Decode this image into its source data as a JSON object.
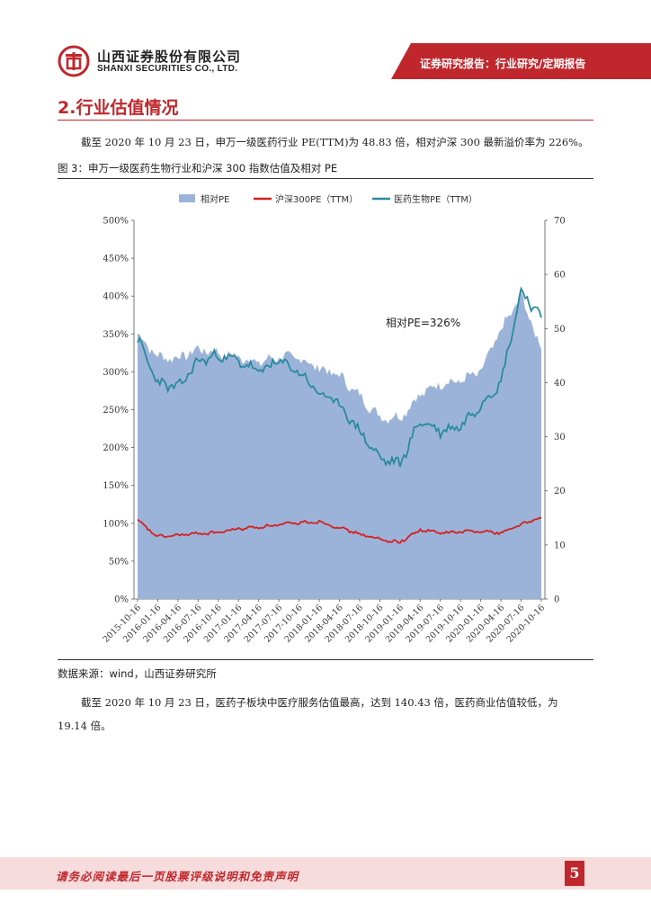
{
  "header": {
    "company_cn": "山西证券股份有限公司",
    "company_en": "SHANXI SECURITIES CO., LTD.",
    "report_type": "证券研究报告：行业研究/定期报告",
    "brand_color": "#c0272d"
  },
  "section": {
    "title": "2.行业估值情况"
  },
  "paragraph1": "截至 2020 年 10 月 23 日，申万一级医药行业 PE(TTM)为 48.83 倍，相对沪深 300 最新溢价率为 226%。",
  "figure": {
    "title": "图 3：申万一级医药生物行业和沪深 300 指数估值及相对 PE",
    "source": "数据来源：wind，山西证券研究所"
  },
  "chart_data": {
    "type": "area",
    "legend": [
      "相对PE",
      "沪深300PE（TTM）",
      "医药生物PE（TTM）"
    ],
    "legend_position": "top",
    "annotation": "相对PE=326%",
    "x": [
      "2015-10-16",
      "2016-01-16",
      "2016-04-16",
      "2016-07-16",
      "2016-10-16",
      "2017-01-16",
      "2017-04-16",
      "2017-07-16",
      "2017-10-16",
      "2018-01-16",
      "2018-04-16",
      "2018-07-16",
      "2018-10-16",
      "2019-01-16",
      "2019-04-16",
      "2019-07-16",
      "2019-10-16",
      "2020-01-16",
      "2020-04-16",
      "2020-07-16",
      "2020-10-16"
    ],
    "left_axis": {
      "ticks": [
        "0%",
        "50%",
        "100%",
        "150%",
        "200%",
        "250%",
        "300%",
        "350%",
        "400%",
        "450%",
        "500%"
      ],
      "min": 0,
      "max": 500
    },
    "right_axis": {
      "ticks": [
        "0",
        "10",
        "20",
        "30",
        "40",
        "50",
        "60",
        "70"
      ],
      "min": 0,
      "max": 70
    },
    "series": [
      {
        "name": "相对PE",
        "axis": "left",
        "color": "#9bb3d8",
        "values": [
          350,
          320,
          318,
          330,
          325,
          320,
          312,
          320,
          318,
          305,
          295,
          268,
          240,
          240,
          270,
          285,
          288,
          300,
          355,
          400,
          330
        ]
      },
      {
        "name": "沪深300PE（TTM）",
        "axis": "right",
        "color": "#d42020",
        "values": [
          14.5,
          11.5,
          11.8,
          12.1,
          12.3,
          13.0,
          13.3,
          13.7,
          14.1,
          14.3,
          13.2,
          12.0,
          11.0,
          10.5,
          12.8,
          12.2,
          12.4,
          12.6,
          12.2,
          13.8,
          15.0
        ]
      },
      {
        "name": "医药生物PE（TTM）",
        "axis": "right",
        "color": "#2a8a9f",
        "values": [
          48,
          40,
          39,
          44,
          45,
          44,
          42,
          44,
          42,
          38,
          36,
          31,
          26,
          25,
          33,
          31,
          32,
          36,
          40,
          57,
          52
        ]
      }
    ]
  },
  "paragraph2_line1": "截至 2020 年 10 月 23 日，医药子板块中医疗服务估值最高，达到 140.43 倍，医药商业估值较低，为",
  "paragraph2_line2": "19.14 倍。",
  "footer": {
    "disclaimer": "请务必阅读最后一页股票评级说明和免责声明",
    "page_number": "5"
  }
}
